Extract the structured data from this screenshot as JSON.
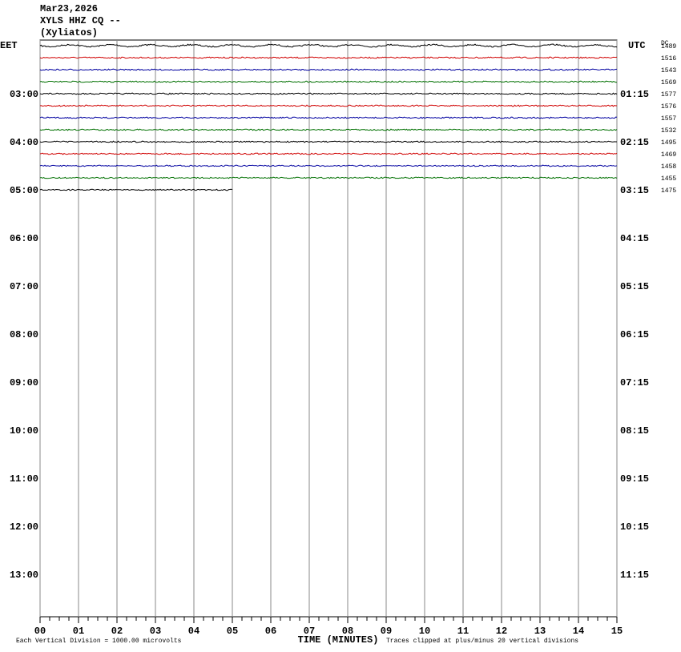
{
  "header": {
    "date": "Mar23,2026",
    "station": "XYLS HHZ CQ --",
    "location": "(Xyliatos)"
  },
  "left_zone": "EET",
  "right_zone": "UTC",
  "dc_heading": "DC",
  "left_labels": [
    "03:00",
    "04:00",
    "05:00",
    "06:00",
    "07:00",
    "08:00",
    "09:00",
    "10:00",
    "11:00",
    "12:00",
    "13:00"
  ],
  "right_labels": [
    "01:15",
    "02:15",
    "03:15",
    "04:15",
    "05:15",
    "06:15",
    "07:15",
    "08:15",
    "09:15",
    "10:15",
    "11:15"
  ],
  "traces": [
    {
      "color": "#000000",
      "dc": "1489",
      "end": 15
    },
    {
      "color": "#d00000",
      "dc": "1516",
      "end": 15
    },
    {
      "color": "#0000a0",
      "dc": "1543",
      "end": 15
    },
    {
      "color": "#007000",
      "dc": "1569",
      "end": 15
    },
    {
      "color": "#000000",
      "dc": "1577",
      "end": 15
    },
    {
      "color": "#d00000",
      "dc": "1576",
      "end": 15
    },
    {
      "color": "#0000a0",
      "dc": "1557",
      "end": 15
    },
    {
      "color": "#007000",
      "dc": "1532",
      "end": 15
    },
    {
      "color": "#000000",
      "dc": "1495",
      "end": 15
    },
    {
      "color": "#d00000",
      "dc": "1469",
      "end": 15
    },
    {
      "color": "#0000a0",
      "dc": "1458",
      "end": 15
    },
    {
      "color": "#007000",
      "dc": "1455",
      "end": 15
    },
    {
      "color": "#000000",
      "dc": "1475",
      "end": 5
    }
  ],
  "x_axis": {
    "label": "TIME (MINUTES)",
    "xlim": [
      0,
      15
    ],
    "ticks": [
      {
        "value": 0,
        "label": "00"
      },
      {
        "value": 1,
        "label": "01"
      },
      {
        "value": 2,
        "label": "02"
      },
      {
        "value": 3,
        "label": "03"
      },
      {
        "value": 4,
        "label": "04"
      },
      {
        "value": 5,
        "label": "05"
      },
      {
        "value": 6,
        "label": "06"
      },
      {
        "value": 7,
        "label": "07"
      },
      {
        "value": 8,
        "label": "08"
      },
      {
        "value": 9,
        "label": "09"
      },
      10,
      11,
      12,
      13,
      14,
      15
    ]
  },
  "footer": {
    "left": "Each Vertical Division = 1000.00 microvolts",
    "right": "Traces clipped at plus/minus 20 vertical divisions"
  }
}
